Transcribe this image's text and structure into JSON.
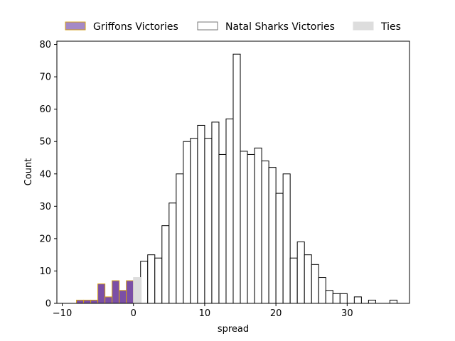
{
  "chart_data": {
    "type": "bar",
    "title": "",
    "xlabel": "spread",
    "ylabel": "Count",
    "xlim": [
      -10.75,
      38.75
    ],
    "ylim": [
      0,
      81
    ],
    "x_ticks": [
      -10,
      0,
      10,
      20,
      30
    ],
    "y_ticks": [
      0,
      10,
      20,
      30,
      40,
      50,
      60,
      70,
      80
    ],
    "grid": false,
    "legend_position": "top",
    "bin_width": 1,
    "series": [
      {
        "name": "Griffons Victories",
        "color": "#7b4fa6",
        "edge_color": "#d4a017",
        "bins": [
          {
            "x": -8,
            "count": 1
          },
          {
            "x": -7,
            "count": 1
          },
          {
            "x": -6,
            "count": 1
          },
          {
            "x": -5,
            "count": 6
          },
          {
            "x": -4,
            "count": 2
          },
          {
            "x": -3,
            "count": 7
          },
          {
            "x": -2,
            "count": 4
          },
          {
            "x": -1,
            "count": 7
          }
        ]
      },
      {
        "name": "Natal Sharks Victories",
        "color": "#ffffff",
        "edge_color": "#000000",
        "bins": [
          {
            "x": 1,
            "count": 13
          },
          {
            "x": 2,
            "count": 15
          },
          {
            "x": 3,
            "count": 14
          },
          {
            "x": 4,
            "count": 24
          },
          {
            "x": 5,
            "count": 31
          },
          {
            "x": 6,
            "count": 40
          },
          {
            "x": 7,
            "count": 50
          },
          {
            "x": 8,
            "count": 51
          },
          {
            "x": 9,
            "count": 55
          },
          {
            "x": 10,
            "count": 51
          },
          {
            "x": 11,
            "count": 56
          },
          {
            "x": 12,
            "count": 46
          },
          {
            "x": 13,
            "count": 57
          },
          {
            "x": 14,
            "count": 77
          },
          {
            "x": 15,
            "count": 47
          },
          {
            "x": 16,
            "count": 46
          },
          {
            "x": 17,
            "count": 48
          },
          {
            "x": 18,
            "count": 44
          },
          {
            "x": 19,
            "count": 42
          },
          {
            "x": 20,
            "count": 34
          },
          {
            "x": 21,
            "count": 40
          },
          {
            "x": 22,
            "count": 14
          },
          {
            "x": 23,
            "count": 19
          },
          {
            "x": 24,
            "count": 15
          },
          {
            "x": 25,
            "count": 12
          },
          {
            "x": 26,
            "count": 8
          },
          {
            "x": 27,
            "count": 4
          },
          {
            "x": 28,
            "count": 3
          },
          {
            "x": 29,
            "count": 3
          },
          {
            "x": 31,
            "count": 2
          },
          {
            "x": 33,
            "count": 1
          },
          {
            "x": 36,
            "count": 1
          }
        ]
      },
      {
        "name": "Ties",
        "color": "#dddddd",
        "edge_color": "#dddddd",
        "bins": [
          {
            "x": 0,
            "count": 8
          }
        ]
      }
    ]
  }
}
